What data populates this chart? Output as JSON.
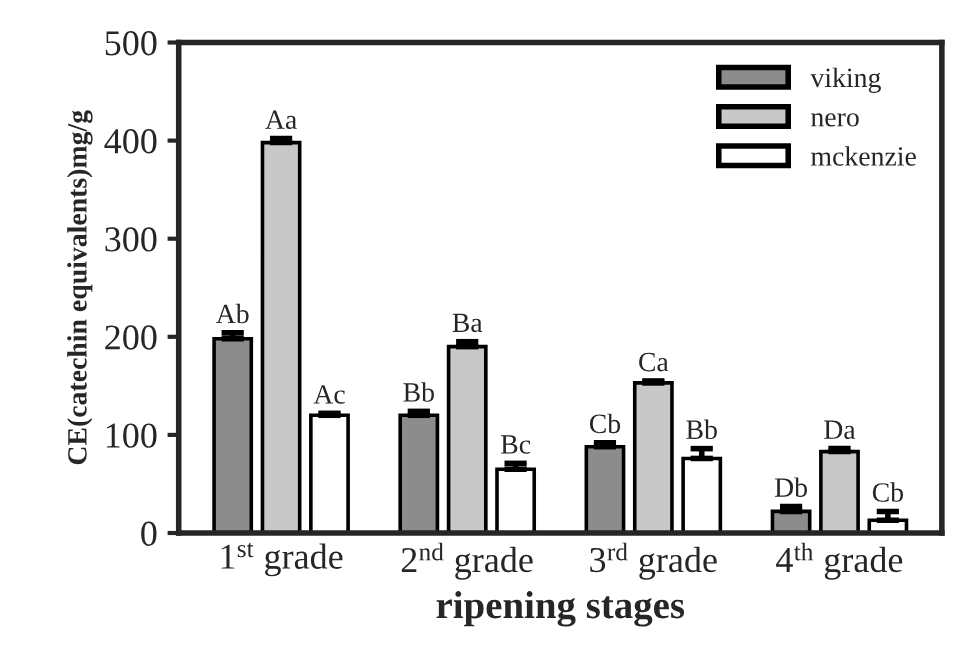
{
  "chart_data": {
    "type": "bar",
    "xlabel": "ripening stages",
    "ylabel": "CE(catechin equivalents)mg/g",
    "categories": [
      "1$^{st}$ grade",
      "2$^{nd}$ grade",
      "3$^{rd}$ grade",
      "4$^{th}$ grade"
    ],
    "series": [
      {
        "name": "viking",
        "color": "#8c8c8c",
        "values": [
          198,
          120,
          88,
          22
        ],
        "errors": [
          6,
          4,
          4,
          5
        ],
        "value_labels": [
          "Ab",
          "Bb",
          "Cb",
          "Db"
        ]
      },
      {
        "name": "nero",
        "color": "#c8c8c8",
        "values": [
          398,
          190,
          153,
          83
        ],
        "errors": [
          4,
          5,
          2,
          3
        ],
        "value_labels": [
          "Aa",
          "Ba",
          "Ca",
          "Da"
        ]
      },
      {
        "name": "mckenzie",
        "color": "#ffffff",
        "values": [
          120,
          65,
          76,
          13
        ],
        "errors": [
          2,
          6,
          10,
          9
        ],
        "value_labels": [
          "Ac",
          "Bc",
          "Bb",
          "Cb"
        ]
      }
    ],
    "ylim": [
      0,
      500
    ],
    "yticks": [
      0,
      100,
      200,
      300,
      400,
      500
    ],
    "grid": false,
    "legend": "top right"
  }
}
